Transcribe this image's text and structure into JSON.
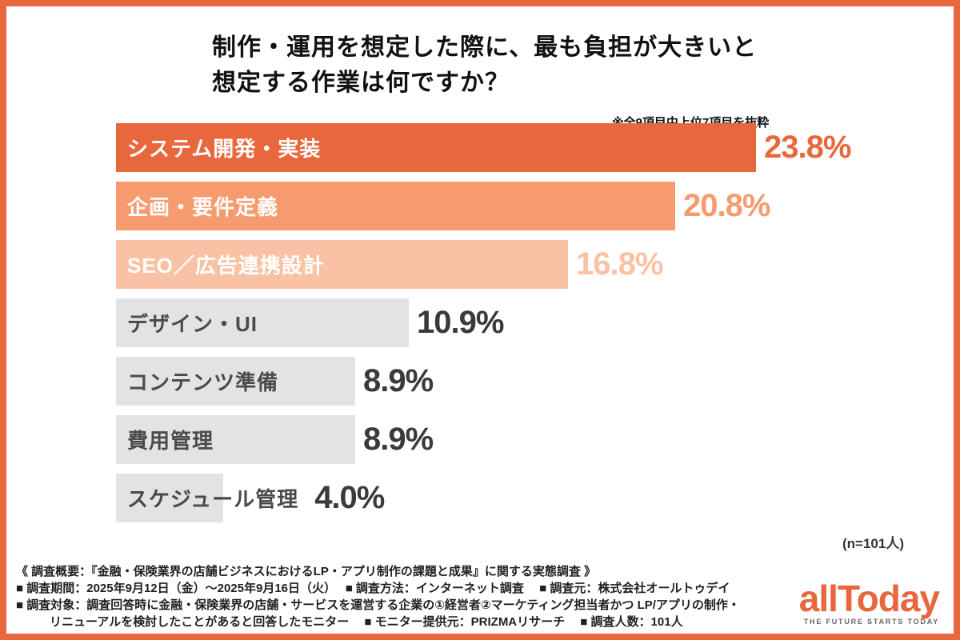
{
  "header": {
    "title_line1": "制作・運用を想定した際に、最も負担が大きいと",
    "title_line2": "想定する作業は何ですか？",
    "note": "※全9項目中上位7項目を抜粋"
  },
  "chart_data": {
    "type": "bar",
    "orientation": "horizontal",
    "title": "制作・運用を想定した際に、最も負担が大きいと想定する作業は何ですか？",
    "categories": [
      "システム開発・実装",
      "企画・要件定義",
      "SEO／広告連携設計",
      "デザイン・UI",
      "コンテンツ準備",
      "費用管理",
      "スケジュール管理"
    ],
    "values": [
      23.8,
      20.8,
      16.8,
      10.9,
      8.9,
      8.9,
      4.0
    ],
    "value_labels": [
      "23.8%",
      "20.8%",
      "16.8%",
      "10.9%",
      "8.9%",
      "8.9%",
      "4.0%"
    ],
    "bar_colors": [
      "#E8673C",
      "#F69B6F",
      "#FAC2A4",
      "#E3E3E3",
      "#E3E3E3",
      "#E3E3E3",
      "#E3E3E3"
    ],
    "category_label_colors": [
      "#FFFFFF",
      "#FFFFFF",
      "#FFFFFF",
      "#4A4A4A",
      "#4A4A4A",
      "#4A4A4A",
      "#4A4A4A"
    ],
    "value_label_colors": [
      "#E8673C",
      "#F69B6F",
      "#FAC2A4",
      "#3A3A3A",
      "#3A3A3A",
      "#3A3A3A",
      "#3A3A3A"
    ],
    "xlim": [
      0,
      25
    ],
    "grid": false,
    "legend": false,
    "sample_note": "(n=101人)"
  },
  "footer": {
    "lines": [
      "《 調査概要：『金融・保険業界の店舗ビジネスにおけるLP・アプリ制作の課題と成果』に関する実態調査 》",
      "■ 調査期間：2025年9月12日（金）〜2025年9月16日（火）　 ■ 調査方法：インターネット調査　 ■ 調査元：株式会社オールトゥデイ",
      "■ 調査対象：調査回答時に金融・保険業界の店舗・サービスを運営する企業の①経営者②マーケティング担当者かつ LP/アプリの制作・",
      "リニューアルを検討したことがあると回答したモニター　 ■ モニター提供元：PRIZMAリサーチ　 ■ 調査人数：101人"
    ]
  },
  "logo": {
    "text": "allToday",
    "tagline": "THE FUTURE STARTS TODAY"
  },
  "colors": {
    "accent": "#E8673C",
    "gray_bar": "#E3E3E3",
    "text_dark": "#1F1F1F"
  }
}
